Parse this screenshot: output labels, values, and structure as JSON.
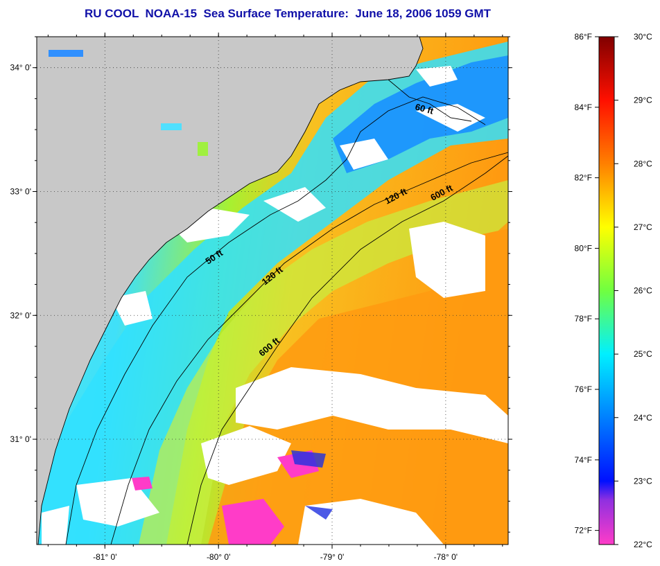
{
  "title": "RU COOL  NOAA-15  Sea Surface Temperature:  June 18, 2006 1059 GMT",
  "colors": {
    "land": "#c8c8c8",
    "cloud": "#ffffff",
    "title": "#1010a8"
  },
  "map": {
    "lon_range": [
      -81.6,
      -77.45
    ],
    "lat_range": [
      30.15,
      34.25
    ],
    "lon_ticks": [
      {
        "value": -81,
        "label": "-81° 0'"
      },
      {
        "value": -80,
        "label": "-80° 0'"
      },
      {
        "value": -79,
        "label": "-79° 0'"
      },
      {
        "value": -78,
        "label": "-78° 0'"
      }
    ],
    "lat_ticks": [
      {
        "value": 34,
        "label": "34° 0'"
      },
      {
        "value": 33,
        "label": "33° 0'"
      },
      {
        "value": 32,
        "label": "32° 0'"
      },
      {
        "value": 31,
        "label": "31° 0'"
      }
    ],
    "contour_labels": [
      {
        "text": "50 ft"
      },
      {
        "text": "120 ft"
      },
      {
        "text": "600 ft"
      },
      {
        "text": "60 ft"
      },
      {
        "text": "120 ft"
      },
      {
        "text": "600 ft"
      }
    ]
  },
  "colorbar": {
    "fahrenheit_labels": [
      "86°F",
      "84°F",
      "82°F",
      "80°F",
      "78°F",
      "76°F",
      "74°F",
      "72°F"
    ],
    "celsius_labels": [
      "30°C",
      "29°C",
      "28°C",
      "27°C",
      "26°C",
      "25°C",
      "24°C",
      "23°C",
      "22°C"
    ],
    "stops": [
      {
        "c": 22,
        "color": "#ff3cc8"
      },
      {
        "c": 22.7,
        "color": "#9030e0"
      },
      {
        "c": 23,
        "color": "#0010ff"
      },
      {
        "c": 24,
        "color": "#0080ff"
      },
      {
        "c": 25,
        "color": "#00f0ff"
      },
      {
        "c": 26,
        "color": "#70ff40"
      },
      {
        "c": 27,
        "color": "#ffff00"
      },
      {
        "c": 28,
        "color": "#ff8000"
      },
      {
        "c": 29,
        "color": "#ff1000"
      },
      {
        "c": 30,
        "color": "#800000"
      }
    ]
  }
}
